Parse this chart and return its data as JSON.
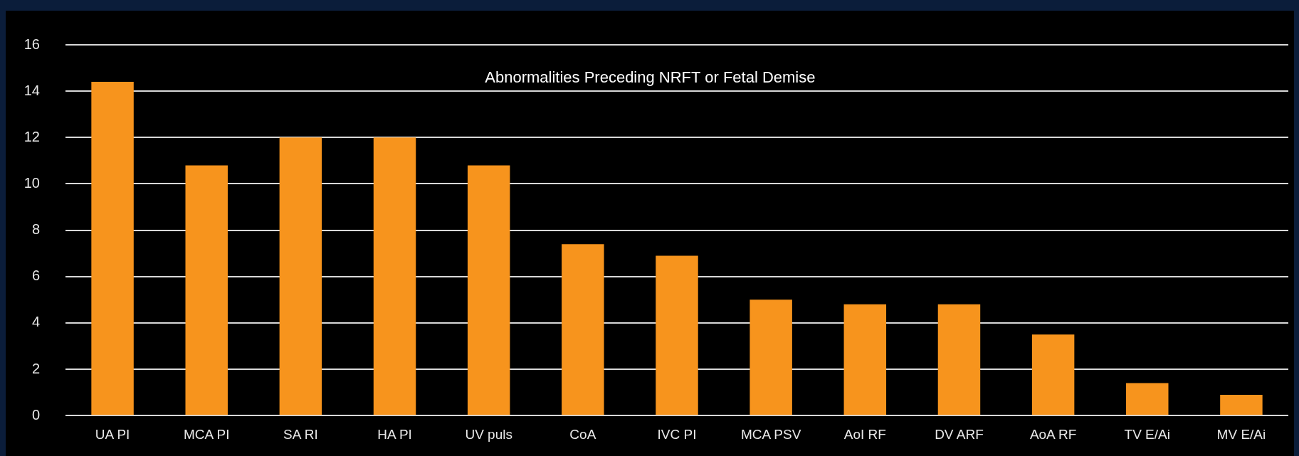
{
  "chart_data": {
    "type": "bar",
    "title": "Abnormalities Preceding NRFT or Fetal Demise",
    "categories": [
      "UA PI",
      "MCA PI",
      "SA RI",
      "HA PI",
      "UV puls",
      "CoA",
      "IVC PI",
      "MCA PSV",
      "AoI RF",
      "DV ARF",
      "AoA RF",
      "TV E/Ai",
      "MV E/Ai"
    ],
    "values": [
      14.4,
      10.8,
      12,
      12,
      10.8,
      7.4,
      6.9,
      5.0,
      4.8,
      4.8,
      3.5,
      1.4,
      0.9
    ],
    "color": "#f7941d",
    "ylim": [
      0,
      16
    ],
    "yticks": [
      0,
      2,
      4,
      6,
      8,
      10,
      12,
      14,
      16
    ],
    "grid": "y",
    "legend": false
  }
}
